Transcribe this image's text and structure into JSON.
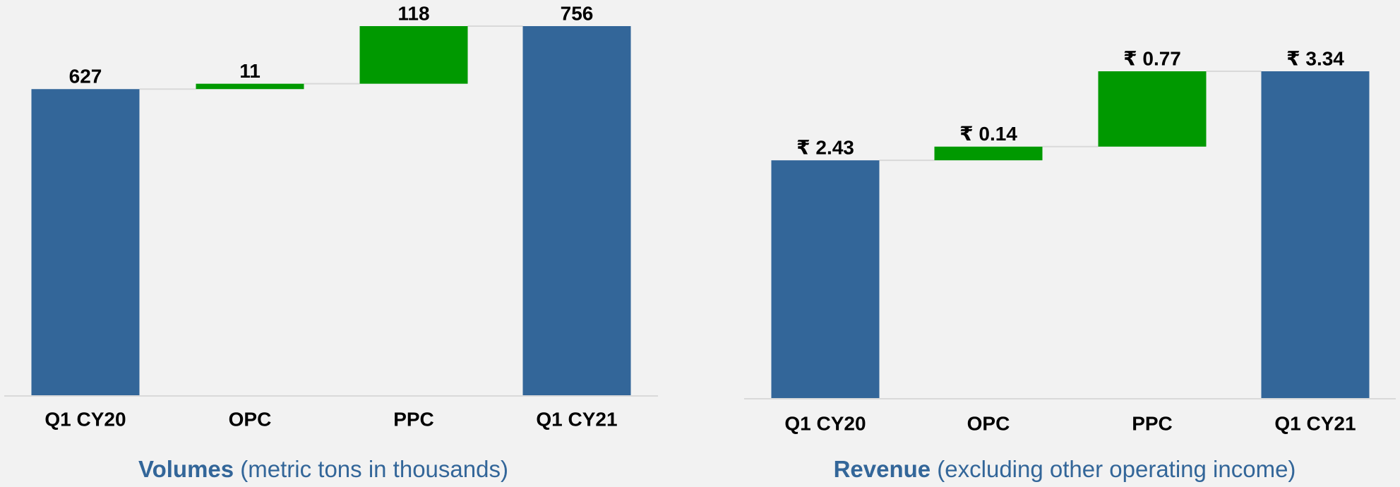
{
  "chart_data": [
    {
      "type": "waterfall",
      "title": "Volumes",
      "subtitle": "(metric tons in thousands)",
      "categories": [
        "Q1 CY20",
        "OPC",
        "PPC",
        "Q1 CY21"
      ],
      "values": [
        627,
        11,
        118,
        756
      ],
      "measure": [
        "absolute",
        "relative",
        "relative",
        "absolute"
      ],
      "total_color": "#336699",
      "increase_color": "#009900",
      "ylim": [
        0,
        756
      ]
    },
    {
      "type": "waterfall",
      "title": "Revenue",
      "subtitle": "(excluding other operating income)",
      "categories": [
        "Q1 CY20",
        "OPC",
        "PPC",
        "Q1 CY21"
      ],
      "values": [
        2.43,
        0.14,
        0.77,
        3.34
      ],
      "value_labels": [
        "₹ 2.43",
        "₹ 0.14",
        "₹ 0.77",
        "₹ 3.34"
      ],
      "measure": [
        "absolute",
        "relative",
        "relative",
        "absolute"
      ],
      "total_color": "#336699",
      "increase_color": "#009900",
      "ylim": [
        0,
        3.34
      ]
    }
  ]
}
